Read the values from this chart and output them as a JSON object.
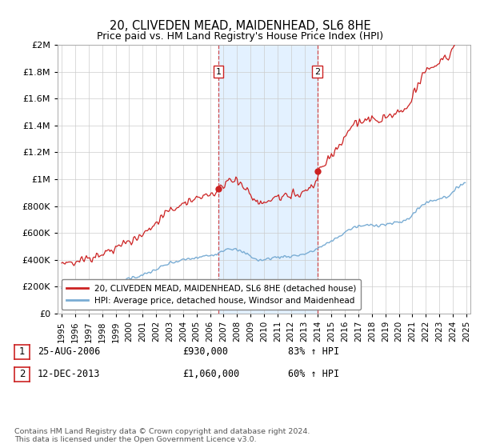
{
  "title": "20, CLIVEDEN MEAD, MAIDENHEAD, SL6 8HE",
  "subtitle": "Price paid vs. HM Land Registry's House Price Index (HPI)",
  "legend_line1": "20, CLIVEDEN MEAD, MAIDENHEAD, SL6 8HE (detached house)",
  "legend_line2": "HPI: Average price, detached house, Windsor and Maidenhead",
  "sale1_label": "1",
  "sale1_date": "25-AUG-2006",
  "sale1_price": "£930,000",
  "sale1_hpi": "83% ↑ HPI",
  "sale1_year": 2006.625,
  "sale1_value": 930000,
  "sale2_label": "2",
  "sale2_date": "12-DEC-2013",
  "sale2_price": "£1,060,000",
  "sale2_hpi": "60% ↑ HPI",
  "sale2_year": 2013.958,
  "sale2_value": 1060000,
  "footnote": "Contains HM Land Registry data © Crown copyright and database right 2024.\nThis data is licensed under the Open Government Licence v3.0.",
  "hpi_color": "#7aadd4",
  "price_color": "#cc2222",
  "background_color": "#ffffff",
  "plot_bg_color": "#ffffff",
  "shade_color": "#ddeeff",
  "grid_color": "#cccccc",
  "ylim": [
    0,
    2000000
  ],
  "yticks": [
    0,
    200000,
    400000,
    600000,
    800000,
    1000000,
    1200000,
    1400000,
    1600000,
    1800000,
    2000000
  ],
  "xlim_start": 1994.7,
  "xlim_end": 2025.3,
  "xticks": [
    1995,
    1996,
    1997,
    1998,
    1999,
    2000,
    2001,
    2002,
    2003,
    2004,
    2005,
    2006,
    2007,
    2008,
    2009,
    2010,
    2011,
    2012,
    2013,
    2014,
    2015,
    2016,
    2017,
    2018,
    2019,
    2020,
    2021,
    2022,
    2023,
    2024,
    2025
  ]
}
